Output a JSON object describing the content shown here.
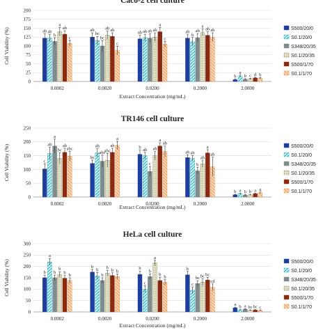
{
  "chart_data": [
    {
      "type": "bar",
      "title": "Caco-2 cell culture",
      "xlabel": "Extract Concentration (mg/mL)",
      "ylabel": "Cell Viability (%)",
      "ylim": [
        0,
        200
      ],
      "yticks": [
        0,
        25,
        50,
        75,
        100,
        125,
        150,
        175,
        200
      ],
      "categories": [
        "0.0002",
        "0.0020",
        "0.0200",
        "0.2000",
        "2.0000"
      ],
      "series": [
        {
          "name": "S500/20/0",
          "values": [
            122,
            125,
            120,
            122,
            5
          ],
          "errors": [
            12,
            12,
            10,
            10,
            2
          ],
          "labels": [
            "ab",
            "ab",
            "ab",
            "ab",
            "b"
          ]
        },
        {
          "name": "S0.1/20/0",
          "values": [
            122,
            115,
            123,
            112,
            15
          ],
          "errors": [
            10,
            12,
            10,
            12,
            3
          ],
          "labels": [
            "ab",
            "bc",
            "ab",
            "b",
            "a"
          ]
        },
        {
          "name": "S348/20/35",
          "values": [
            113,
            100,
            122,
            123,
            6
          ],
          "errors": [
            10,
            15,
            12,
            12,
            2
          ],
          "labels": [
            "b",
            "bc",
            "ab",
            "ab",
            "b"
          ]
        },
        {
          "name": "S0.1/20/35",
          "values": [
            140,
            130,
            125,
            138,
            7
          ],
          "errors": [
            12,
            12,
            12,
            10,
            2
          ],
          "labels": [
            "a",
            "ab",
            "ab",
            "a",
            "c"
          ]
        },
        {
          "name": "S500/1/70",
          "values": [
            133,
            127,
            140,
            130,
            10
          ],
          "errors": [
            10,
            10,
            12,
            10,
            2
          ],
          "labels": [
            "ab",
            "ab",
            "a",
            "ab",
            "d"
          ]
        },
        {
          "name": "S0.1/1/70",
          "values": [
            107,
            87,
            105,
            125,
            9
          ],
          "errors": [
            8,
            12,
            8,
            12,
            2
          ],
          "labels": [
            "c",
            "c",
            "c",
            "ab",
            "b"
          ]
        }
      ],
      "legend_position": "right"
    },
    {
      "type": "bar",
      "title": "TR146 cell culture",
      "xlabel": "Extract Concentration (mg/mL)",
      "ylabel": "Cell Viability (%)",
      "ylim": [
        0,
        250
      ],
      "yticks": [
        0,
        50,
        100,
        150,
        200,
        250
      ],
      "categories": [
        "0.0002",
        "0.0020",
        "0.0200",
        "0.2000",
        "2.0000"
      ],
      "series": [
        {
          "name": "S500/20/0",
          "values": [
            102,
            122,
            155,
            143,
            8
          ],
          "errors": [
            18,
            12,
            15,
            10,
            2
          ],
          "labels": [
            "c",
            "bc",
            "b",
            "ab",
            "b"
          ]
        },
        {
          "name": "S0.1/20/0",
          "values": [
            158,
            160,
            150,
            140,
            12
          ],
          "errors": [
            22,
            15,
            12,
            10,
            2
          ],
          "labels": [
            "ab",
            "ab",
            "ab",
            "ab",
            "a"
          ]
        },
        {
          "name": "S348/20/35",
          "values": [
            185,
            130,
            93,
            95,
            7
          ],
          "errors": [
            25,
            22,
            18,
            12,
            2
          ],
          "labels": [
            "a",
            "abc",
            "c",
            "b",
            "b"
          ]
        },
        {
          "name": "S0.1/20/35",
          "values": [
            140,
            133,
            150,
            120,
            8
          ],
          "errors": [
            20,
            25,
            15,
            12,
            2
          ],
          "labels": [
            "bc",
            "abc",
            "ab",
            "ab",
            "b"
          ]
        },
        {
          "name": "S500/1/70",
          "values": [
            162,
            162,
            185,
            160,
            12
          ],
          "errors": [
            15,
            15,
            12,
            12,
            2
          ],
          "labels": [
            "ab",
            "ab",
            "a",
            "a",
            "a"
          ]
        },
        {
          "name": "S0.1/1/70",
          "values": [
            148,
            187,
            165,
            110,
            15
          ],
          "errors": [
            18,
            15,
            20,
            35,
            3
          ],
          "labels": [
            "abc",
            "a",
            "ab",
            "ab",
            "a"
          ]
        }
      ],
      "legend_position": "right"
    },
    {
      "type": "bar",
      "title": "HeLa cell culture",
      "xlabel": "Extract Concentration (mg/mL)",
      "ylabel": "Cell Viability (%)",
      "ylim": [
        0,
        300
      ],
      "yticks": [
        0,
        50,
        100,
        150,
        200,
        250,
        300
      ],
      "categories": [
        "0.0002",
        "0.0020",
        "0.0200",
        "0.2000",
        "2.0000"
      ],
      "series": [
        {
          "name": "S500/20/0",
          "values": [
            150,
            175,
            165,
            163,
            18
          ],
          "errors": [
            12,
            12,
            15,
            15,
            3
          ],
          "labels": [
            "b",
            "b",
            "b",
            "b",
            "a"
          ]
        },
        {
          "name": "S0.1/20/0",
          "values": [
            220,
            158,
            100,
            95,
            8
          ],
          "errors": [
            15,
            15,
            15,
            15,
            2
          ],
          "labels": [
            "a",
            "b",
            "c",
            "c",
            "b"
          ]
        },
        {
          "name": "S348/20/35",
          "values": [
            150,
            138,
            155,
            125,
            12
          ],
          "errors": [
            12,
            12,
            12,
            12,
            2
          ],
          "labels": [
            "b",
            "b",
            "b",
            "bc",
            "a"
          ]
        },
        {
          "name": "S0.1/20/35",
          "values": [
            165,
            170,
            215,
            130,
            7
          ],
          "errors": [
            12,
            12,
            12,
            15,
            2
          ],
          "labels": [
            "b",
            "b",
            "a",
            "bc",
            "bc"
          ]
        },
        {
          "name": "S500/1/70",
          "values": [
            148,
            160,
            138,
            140,
            8
          ],
          "errors": [
            12,
            12,
            15,
            12,
            2
          ],
          "labels": [
            "b",
            "b",
            "b",
            "bc",
            "bc"
          ]
        },
        {
          "name": "S0.1/1/70",
          "values": [
            138,
            155,
            130,
            108,
            6
          ],
          "errors": [
            12,
            12,
            12,
            15,
            2
          ],
          "labels": [
            "b",
            "b",
            "b",
            "cd",
            "c"
          ]
        }
      ],
      "legend_position": "right"
    }
  ],
  "legend_entries": [
    {
      "label": "S500/20/0",
      "color": "#1f3f9e",
      "pattern": "solid"
    },
    {
      "label": "S0.1/20/0",
      "color": "#3ec2cf",
      "pattern": "diagonal"
    },
    {
      "label": "S348/20/35",
      "color": "#7f8c8d",
      "pattern": "solid"
    },
    {
      "label": "S0.1/20/35",
      "color": "#b5b48a",
      "pattern": "dots"
    },
    {
      "label": "S500/1/70",
      "color": "#8b2a10",
      "pattern": "solid"
    },
    {
      "label": "S0.1/1/70",
      "color": "#f0a86a",
      "pattern": "diagonal"
    }
  ]
}
